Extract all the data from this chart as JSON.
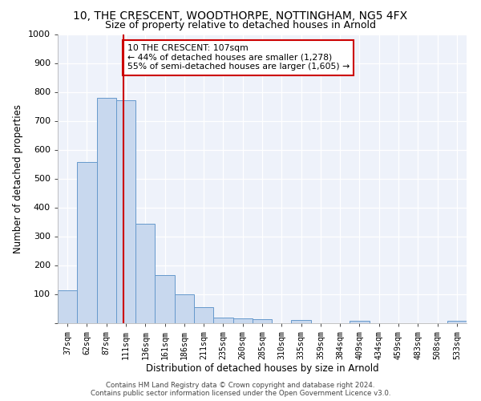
{
  "title": "10, THE CRESCENT, WOODTHORPE, NOTTINGHAM, NG5 4FX",
  "subtitle": "Size of property relative to detached houses in Arnold",
  "xlabel": "Distribution of detached houses by size in Arnold",
  "ylabel": "Number of detached properties",
  "categories": [
    "37sqm",
    "62sqm",
    "87sqm",
    "111sqm",
    "136sqm",
    "161sqm",
    "186sqm",
    "211sqm",
    "235sqm",
    "260sqm",
    "285sqm",
    "310sqm",
    "335sqm",
    "359sqm",
    "384sqm",
    "409sqm",
    "434sqm",
    "459sqm",
    "483sqm",
    "508sqm",
    "533sqm"
  ],
  "values": [
    113,
    558,
    778,
    770,
    343,
    165,
    98,
    55,
    18,
    14,
    13,
    0,
    11,
    0,
    0,
    8,
    0,
    0,
    0,
    0,
    8
  ],
  "bar_color": "#c8d8ee",
  "bar_edge_color": "#6699cc",
  "marker_color": "#cc0000",
  "annotation_box_color": "#cc0000",
  "ylim": [
    0,
    1000
  ],
  "yticks": [
    0,
    100,
    200,
    300,
    400,
    500,
    600,
    700,
    800,
    900,
    1000
  ],
  "footer_line1": "Contains HM Land Registry data © Crown copyright and database right 2024.",
  "footer_line2": "Contains public sector information licensed under the Open Government Licence v3.0.",
  "bg_color": "#eef2fa",
  "title_fontsize": 10,
  "subtitle_fontsize": 9,
  "annotation_title": "10 THE CRESCENT: 107sqm",
  "annotation_line1": "← 44% of detached houses are smaller (1,278)",
  "annotation_line2": "55% of semi-detached houses are larger (1,605) →"
}
